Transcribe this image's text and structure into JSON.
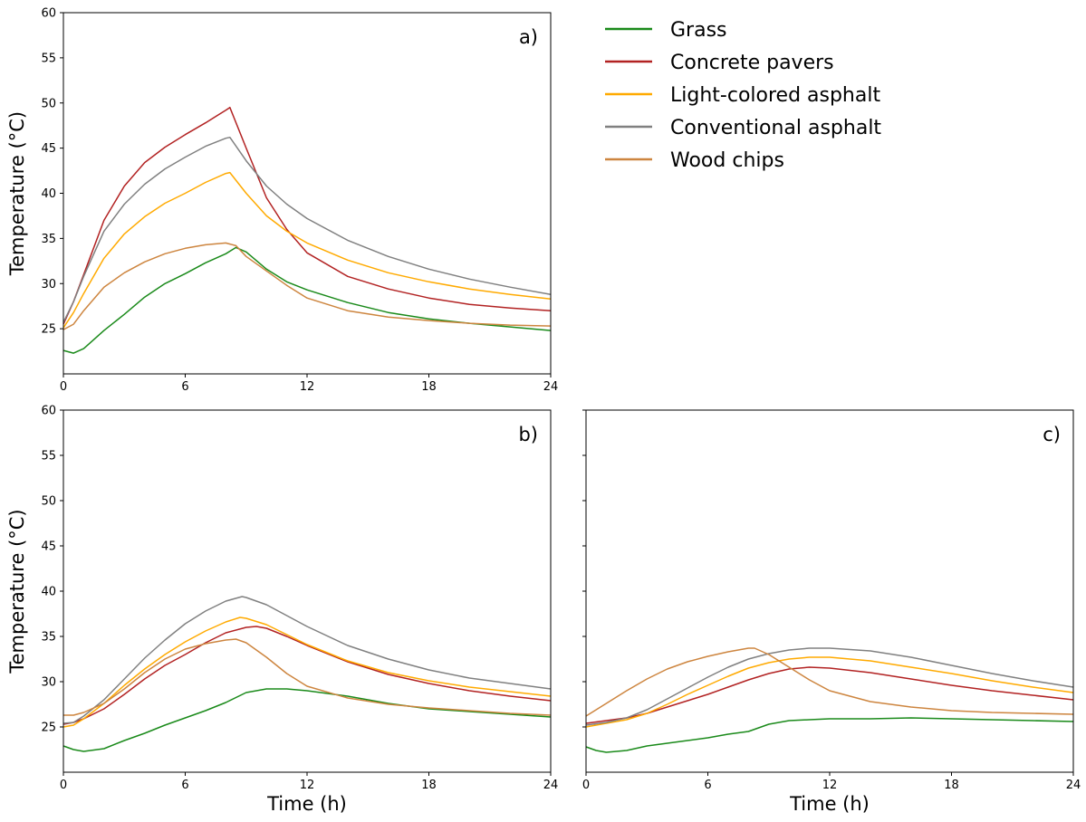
{
  "legend": [
    {
      "name": "Grass",
      "color": "#1a8a1a"
    },
    {
      "name": "Concrete pavers",
      "color": "#b22222"
    },
    {
      "name": "Light-colored asphalt",
      "color": "#ffaa00"
    },
    {
      "name": "Conventional asphalt",
      "color": "#808080"
    },
    {
      "name": "Wood chips",
      "color": "#cd853f"
    }
  ],
  "chart_data": [
    {
      "type": "line",
      "panel_label": "a)",
      "ylabel": "Temperature (°C)",
      "xlabel": "",
      "xlim": [
        0,
        24
      ],
      "ylim": [
        20,
        60
      ],
      "xticks": [
        0,
        6,
        12,
        18,
        24
      ],
      "yticks": [
        25,
        30,
        35,
        40,
        45,
        50,
        55,
        60
      ],
      "series": [
        {
          "name": "Grass",
          "color": "#1a8a1a",
          "x": [
            0,
            0.5,
            1,
            2,
            3,
            4,
            5,
            6,
            7,
            8,
            8.5,
            9,
            10,
            11,
            12,
            14,
            16,
            18,
            20,
            22,
            24
          ],
          "y": [
            22.6,
            22.3,
            22.8,
            24.8,
            26.6,
            28.5,
            30.0,
            31.1,
            32.3,
            33.3,
            34.0,
            33.5,
            31.6,
            30.2,
            29.3,
            27.9,
            26.8,
            26.1,
            25.6,
            25.2,
            24.8
          ]
        },
        {
          "name": "Concrete pavers",
          "color": "#b22222",
          "x": [
            0,
            0.5,
            1,
            2,
            3,
            4,
            5,
            6,
            7,
            8,
            8.2,
            9,
            10,
            11,
            12,
            14,
            16,
            18,
            20,
            22,
            24
          ],
          "y": [
            25.5,
            28.0,
            31.0,
            37.0,
            40.8,
            43.4,
            45.1,
            46.5,
            47.8,
            49.2,
            49.5,
            45.0,
            39.5,
            36.0,
            33.4,
            30.8,
            29.4,
            28.4,
            27.7,
            27.3,
            27.0
          ]
        },
        {
          "name": "Light-colored asphalt",
          "color": "#ffaa00",
          "x": [
            0,
            0.5,
            1,
            2,
            3,
            4,
            5,
            6,
            7,
            8,
            8.2,
            9,
            10,
            11,
            12,
            14,
            16,
            18,
            20,
            22,
            24
          ],
          "y": [
            25.1,
            26.8,
            28.9,
            32.8,
            35.5,
            37.4,
            38.9,
            40.0,
            41.2,
            42.2,
            42.3,
            40.0,
            37.5,
            35.8,
            34.5,
            32.6,
            31.2,
            30.2,
            29.4,
            28.8,
            28.3
          ]
        },
        {
          "name": "Conventional asphalt",
          "color": "#808080",
          "x": [
            0,
            0.5,
            1,
            2,
            3,
            4,
            5,
            6,
            7,
            8,
            8.2,
            9,
            10,
            11,
            12,
            14,
            16,
            18,
            20,
            22,
            24
          ],
          "y": [
            25.7,
            28.0,
            30.8,
            35.8,
            38.8,
            41.0,
            42.7,
            44.0,
            45.2,
            46.1,
            46.2,
            43.6,
            40.8,
            38.8,
            37.2,
            34.8,
            33.0,
            31.6,
            30.5,
            29.6,
            28.8
          ]
        },
        {
          "name": "Wood chips",
          "color": "#cd853f",
          "x": [
            0,
            0.5,
            1,
            2,
            3,
            4,
            5,
            6,
            7,
            8,
            8.5,
            9,
            10,
            11,
            12,
            14,
            16,
            18,
            20,
            22,
            24
          ],
          "y": [
            24.9,
            25.5,
            27.0,
            29.6,
            31.2,
            32.4,
            33.3,
            33.9,
            34.3,
            34.5,
            34.2,
            33.0,
            31.4,
            29.8,
            28.4,
            27.0,
            26.3,
            25.9,
            25.6,
            25.4,
            25.3
          ]
        }
      ]
    },
    {
      "type": "line",
      "panel_label": "b)",
      "ylabel": "Temperature (°C)",
      "xlabel": "Time (h)",
      "xlim": [
        0,
        24
      ],
      "ylim": [
        20,
        60
      ],
      "xticks": [
        0,
        6,
        12,
        18,
        24
      ],
      "yticks": [
        25,
        30,
        35,
        40,
        45,
        50,
        55,
        60
      ],
      "series": [
        {
          "name": "Grass",
          "color": "#1a8a1a",
          "x": [
            0,
            0.5,
            1,
            2,
            3,
            4,
            5,
            6,
            7,
            8,
            9,
            10,
            11,
            12,
            14,
            16,
            18,
            20,
            22,
            24
          ],
          "y": [
            22.9,
            22.5,
            22.3,
            22.6,
            23.5,
            24.3,
            25.2,
            26.0,
            26.8,
            27.7,
            28.8,
            29.2,
            29.2,
            29.0,
            28.4,
            27.6,
            27.0,
            26.7,
            26.4,
            26.1
          ]
        },
        {
          "name": "Concrete pavers",
          "color": "#b22222",
          "x": [
            0,
            0.5,
            1,
            2,
            3,
            4,
            5,
            6,
            7,
            8,
            9,
            9.5,
            10,
            11,
            12,
            14,
            16,
            18,
            20,
            22,
            24
          ],
          "y": [
            25.3,
            25.5,
            25.9,
            27.0,
            28.6,
            30.3,
            31.8,
            33.0,
            34.3,
            35.4,
            36.0,
            36.1,
            35.9,
            35.0,
            34.0,
            32.2,
            30.8,
            29.8,
            29.0,
            28.4,
            27.9
          ]
        },
        {
          "name": "Light-colored asphalt",
          "color": "#ffaa00",
          "x": [
            0,
            0.5,
            1,
            2,
            3,
            4,
            5,
            6,
            7,
            8,
            8.7,
            9,
            10,
            11,
            12,
            14,
            16,
            18,
            20,
            22,
            24
          ],
          "y": [
            25.0,
            25.2,
            25.9,
            27.6,
            29.6,
            31.4,
            33.0,
            34.4,
            35.6,
            36.6,
            37.1,
            37.0,
            36.3,
            35.2,
            34.1,
            32.3,
            31.0,
            30.1,
            29.4,
            28.9,
            28.4
          ]
        },
        {
          "name": "Conventional asphalt",
          "color": "#808080",
          "x": [
            0,
            0.5,
            1,
            2,
            3,
            4,
            5,
            6,
            7,
            8,
            8.8,
            9,
            10,
            11,
            12,
            14,
            16,
            18,
            20,
            22,
            24
          ],
          "y": [
            25.4,
            25.5,
            26.2,
            28.0,
            30.3,
            32.6,
            34.6,
            36.4,
            37.8,
            38.9,
            39.4,
            39.3,
            38.5,
            37.3,
            36.1,
            34.0,
            32.5,
            31.3,
            30.4,
            29.8,
            29.2
          ]
        },
        {
          "name": "Wood chips",
          "color": "#cd853f",
          "x": [
            0,
            0.5,
            1,
            2,
            3,
            4,
            5,
            6,
            7,
            8,
            8.5,
            9,
            10,
            11,
            12,
            14,
            16,
            18,
            20,
            22,
            24
          ],
          "y": [
            26.3,
            26.3,
            26.6,
            27.6,
            29.2,
            31.0,
            32.5,
            33.6,
            34.2,
            34.6,
            34.7,
            34.3,
            32.7,
            30.9,
            29.5,
            28.2,
            27.5,
            27.1,
            26.8,
            26.5,
            26.3
          ]
        }
      ]
    },
    {
      "type": "line",
      "panel_label": "c)",
      "ylabel": "",
      "xlabel": "Time (h)",
      "xlim": [
        0,
        24
      ],
      "ylim": [
        20,
        60
      ],
      "xticks": [
        0,
        6,
        12,
        18,
        24
      ],
      "yticks": [],
      "series": [
        {
          "name": "Grass",
          "color": "#1a8a1a",
          "x": [
            0,
            0.5,
            1,
            2,
            3,
            4,
            5,
            6,
            7,
            8,
            9,
            10,
            11,
            12,
            14,
            16,
            18,
            20,
            22,
            24
          ],
          "y": [
            22.8,
            22.4,
            22.2,
            22.4,
            22.9,
            23.2,
            23.5,
            23.8,
            24.2,
            24.5,
            25.3,
            25.7,
            25.8,
            25.9,
            25.9,
            26.0,
            25.9,
            25.8,
            25.7,
            25.6
          ]
        },
        {
          "name": "Concrete pavers",
          "color": "#b22222",
          "x": [
            0,
            1,
            2,
            3,
            4,
            5,
            6,
            7,
            8,
            9,
            10,
            11,
            12,
            14,
            16,
            18,
            20,
            22,
            24
          ],
          "y": [
            25.4,
            25.7,
            26.0,
            26.5,
            27.2,
            27.9,
            28.6,
            29.4,
            30.2,
            30.9,
            31.4,
            31.6,
            31.5,
            31.0,
            30.3,
            29.6,
            29.0,
            28.5,
            28.0
          ]
        },
        {
          "name": "Light-colored asphalt",
          "color": "#ffaa00",
          "x": [
            0,
            1,
            2,
            3,
            4,
            5,
            6,
            7,
            8,
            9,
            10,
            11,
            12,
            14,
            16,
            18,
            20,
            22,
            24
          ],
          "y": [
            25.0,
            25.4,
            25.8,
            26.5,
            27.5,
            28.6,
            29.6,
            30.6,
            31.5,
            32.1,
            32.5,
            32.7,
            32.7,
            32.3,
            31.6,
            30.9,
            30.1,
            29.4,
            28.8
          ]
        },
        {
          "name": "Conventional asphalt",
          "color": "#808080",
          "x": [
            0,
            1,
            2,
            3,
            4,
            5,
            6,
            7,
            8,
            9,
            10,
            11,
            12,
            14,
            16,
            18,
            20,
            22,
            24
          ],
          "y": [
            25.2,
            25.5,
            26.0,
            26.9,
            28.1,
            29.3,
            30.5,
            31.6,
            32.5,
            33.1,
            33.5,
            33.7,
            33.7,
            33.4,
            32.7,
            31.8,
            30.9,
            30.1,
            29.4
          ]
        },
        {
          "name": "Wood chips",
          "color": "#cd853f",
          "x": [
            0,
            1,
            2,
            3,
            4,
            5,
            6,
            7,
            8,
            8.3,
            9,
            10,
            11,
            12,
            14,
            16,
            18,
            20,
            22,
            24
          ],
          "y": [
            26.2,
            27.6,
            29.0,
            30.3,
            31.4,
            32.2,
            32.8,
            33.3,
            33.7,
            33.7,
            33.0,
            31.6,
            30.2,
            29.0,
            27.8,
            27.2,
            26.8,
            26.6,
            26.5,
            26.4
          ]
        }
      ]
    }
  ]
}
